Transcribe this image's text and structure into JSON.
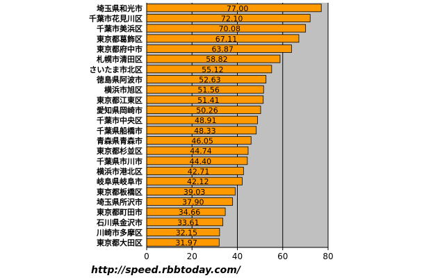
{
  "chart_data": {
    "type": "bar",
    "orientation": "horizontal",
    "categories": [
      "埼玉県和光市",
      "千葉市花見川区",
      "千葉市美浜区",
      "東京都葛飾区",
      "東京都府中市",
      "札幌市清田区",
      "さいたま市北区",
      "徳島県阿波市",
      "横浜市旭区",
      "東京都江東区",
      "愛知県岡崎市",
      "千葉市中央区",
      "千葉県船橋市",
      "青森県青森市",
      "東京都杉並区",
      "千葉県市川市",
      "横浜市港北区",
      "岐阜県岐阜市",
      "東京都板橋区",
      "埼玉県所沢市",
      "東京都町田市",
      "石川県金沢市",
      "川崎市多摩区",
      "東京都大田区"
    ],
    "values": [
      77.0,
      72.1,
      70.08,
      67.11,
      63.87,
      58.82,
      55.12,
      52.63,
      51.56,
      51.41,
      50.26,
      48.91,
      48.33,
      46.05,
      44.74,
      44.4,
      42.71,
      42.12,
      39.03,
      37.9,
      34.66,
      33.61,
      32.15,
      31.97
    ],
    "value_labels": [
      "77.00",
      "72.10",
      "70.08",
      "67.11",
      "63.87",
      "58.82",
      "55.12",
      "52.63",
      "51.56",
      "51.41",
      "50.26",
      "48.91",
      "48.33",
      "46.05",
      "44.74",
      "44.40",
      "42.71",
      "42.12",
      "39.03",
      "37.90",
      "34.66",
      "33.61",
      "32.15",
      "31.97"
    ],
    "xlim": [
      0,
      80
    ],
    "xticks": [
      0,
      20,
      40,
      60,
      80
    ],
    "title": "",
    "xlabel": "",
    "ylabel": "",
    "grid": "vertical",
    "legend": "none"
  },
  "colors": {
    "bar": "#ff9900",
    "plot_background": "#c0c0c0",
    "gridline": "#000000",
    "text": "#000000"
  },
  "source_text": "http://speed.rbbtoday.com/"
}
